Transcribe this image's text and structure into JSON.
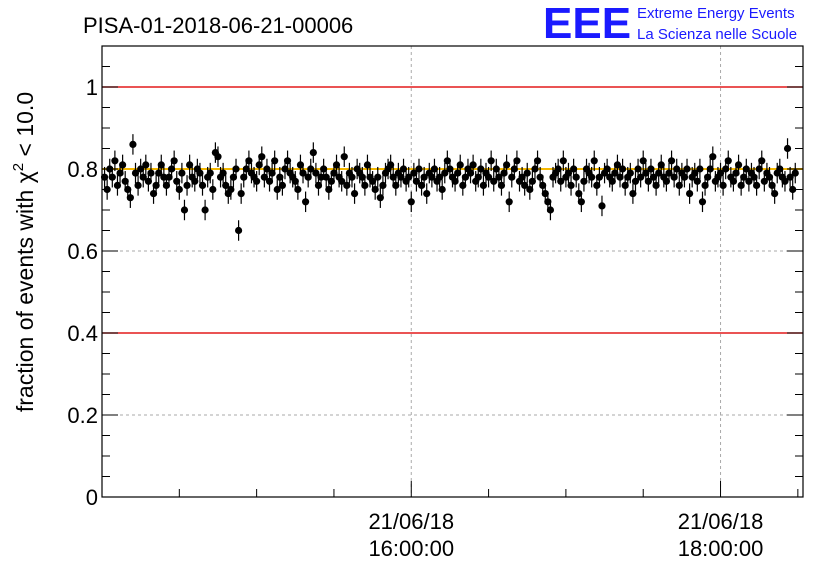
{
  "chart_data": {
    "type": "scatter",
    "title": "PISA-01-2018-06-21-00006",
    "ylabel_prefix": "fraction of events with ",
    "ylabel_symbol": "χ",
    "ylabel_sup": "2",
    "ylabel_suffix": " < 10.0",
    "ylim": [
      0,
      1.1
    ],
    "x_unit": "minutes since 21/06/18 14:00:00",
    "xlim": [
      0,
      272
    ],
    "grid": true,
    "yticks": [
      "0",
      "0.2",
      "0.4",
      "0.6",
      "0.8",
      "1"
    ],
    "xtick_labels": [
      {
        "date": "21/06/18",
        "time": "16:00:00",
        "x": 120
      },
      {
        "date": "21/06/18",
        "time": "18:00:00",
        "x": 240
      }
    ],
    "reference_lines": [
      {
        "y": 1.0,
        "color": "#e41a1c"
      },
      {
        "y": 0.4,
        "color": "#e41a1c"
      },
      {
        "y": 0.8,
        "color": "#f5b800"
      }
    ],
    "series": [
      {
        "marker_color": "#000000",
        "error": 0.025,
        "x_start": 1,
        "x_step": 1,
        "values": [
          0.78,
          0.75,
          0.8,
          0.78,
          0.82,
          0.76,
          0.79,
          0.81,
          0.77,
          0.75,
          0.73,
          0.86,
          0.79,
          0.76,
          0.8,
          0.78,
          0.81,
          0.77,
          0.79,
          0.74,
          0.76,
          0.79,
          0.81,
          0.78,
          0.76,
          0.78,
          0.8,
          0.82,
          0.77,
          0.75,
          0.79,
          0.7,
          0.76,
          0.81,
          0.78,
          0.77,
          0.8,
          0.79,
          0.76,
          0.7,
          0.78,
          0.79,
          0.75,
          0.84,
          0.83,
          0.78,
          0.79,
          0.76,
          0.74,
          0.75,
          0.78,
          0.8,
          0.65,
          0.74,
          0.78,
          0.8,
          0.82,
          0.79,
          0.78,
          0.77,
          0.81,
          0.83,
          0.78,
          0.8,
          0.77,
          0.79,
          0.82,
          0.75,
          0.78,
          0.76,
          0.8,
          0.82,
          0.79,
          0.78,
          0.77,
          0.75,
          0.81,
          0.79,
          0.72,
          0.78,
          0.8,
          0.84,
          0.79,
          0.76,
          0.78,
          0.8,
          0.78,
          0.75,
          0.77,
          0.79,
          0.81,
          0.78,
          0.77,
          0.83,
          0.76,
          0.79,
          0.78,
          0.74,
          0.8,
          0.79,
          0.78,
          0.76,
          0.81,
          0.78,
          0.77,
          0.75,
          0.78,
          0.73,
          0.76,
          0.79,
          0.8,
          0.81,
          0.78,
          0.76,
          0.79,
          0.78,
          0.8,
          0.77,
          0.78,
          0.72,
          0.79,
          0.77,
          0.8,
          0.76,
          0.78,
          0.74,
          0.79,
          0.78,
          0.8,
          0.77,
          0.78,
          0.75,
          0.79,
          0.82,
          0.8,
          0.78,
          0.77,
          0.79,
          0.81,
          0.76,
          0.78,
          0.8,
          0.79,
          0.81,
          0.77,
          0.78,
          0.8,
          0.76,
          0.79,
          0.78,
          0.82,
          0.77,
          0.8,
          0.78,
          0.76,
          0.79,
          0.81,
          0.72,
          0.78,
          0.8,
          0.82,
          0.77,
          0.78,
          0.76,
          0.79,
          0.75,
          0.77,
          0.8,
          0.82,
          0.78,
          0.76,
          0.74,
          0.72,
          0.7,
          0.78,
          0.79,
          0.8,
          0.77,
          0.82,
          0.78,
          0.79,
          0.76,
          0.8,
          0.78,
          0.74,
          0.72,
          0.77,
          0.8,
          0.79,
          0.78,
          0.82,
          0.76,
          0.78,
          0.71,
          0.79,
          0.8,
          0.78,
          0.77,
          0.79,
          0.81,
          0.78,
          0.8,
          0.76,
          0.78,
          0.79,
          0.74,
          0.77,
          0.8,
          0.78,
          0.82,
          0.79,
          0.77,
          0.8,
          0.78,
          0.76,
          0.79,
          0.81,
          0.78,
          0.77,
          0.79,
          0.82,
          0.78,
          0.8,
          0.76,
          0.79,
          0.78,
          0.8,
          0.74,
          0.78,
          0.79,
          0.77,
          0.8,
          0.72,
          0.76,
          0.78,
          0.8,
          0.83,
          0.77,
          0.78,
          0.79,
          0.76,
          0.8,
          0.82,
          0.78,
          0.77,
          0.79,
          0.81,
          0.76,
          0.78,
          0.8,
          0.77,
          0.79,
          0.78,
          0.76,
          0.8,
          0.82,
          0.77,
          0.79,
          0.78,
          0.76,
          0.74,
          0.79,
          0.8,
          0.78,
          0.77,
          0.85,
          0.78,
          0.75,
          0.79
        ]
      }
    ]
  },
  "brand": {
    "letters": "EEE",
    "line1": "Extreme Energy Events",
    "line2": "La Scienza nelle Scuole"
  }
}
